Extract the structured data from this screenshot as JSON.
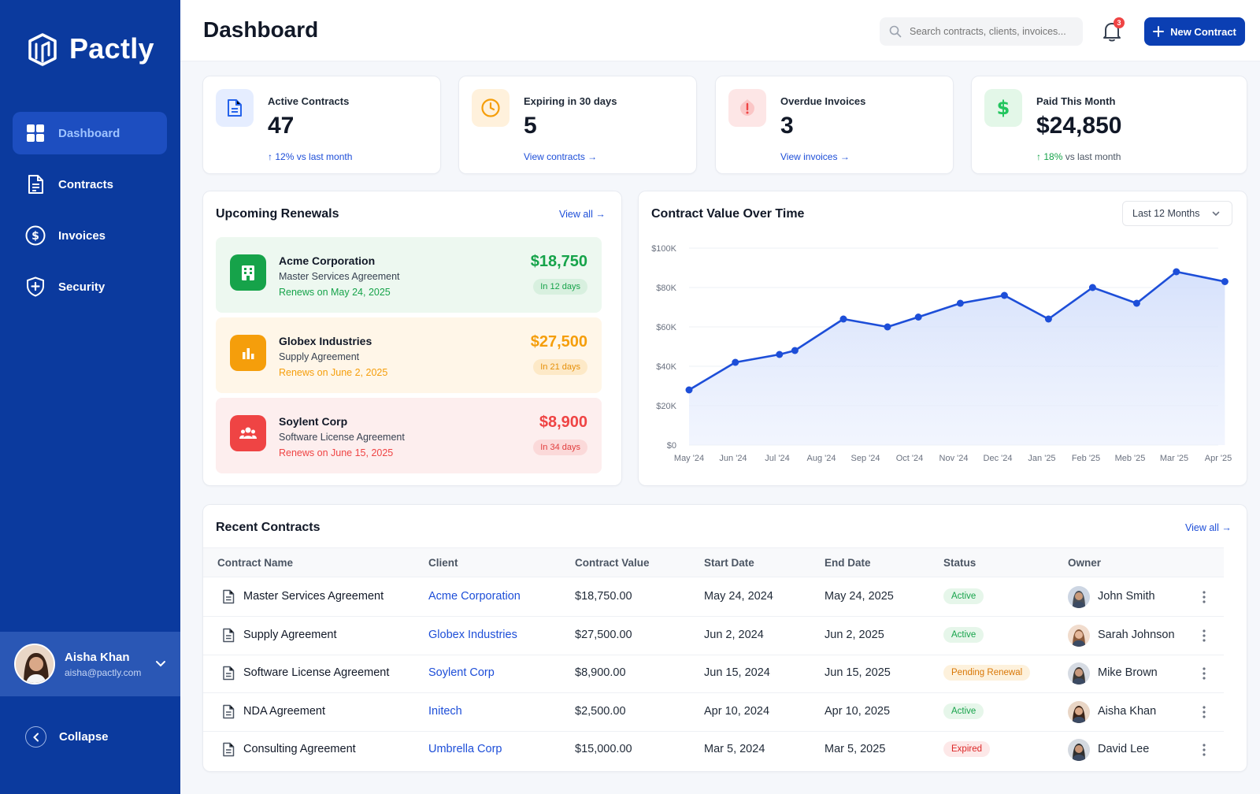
{
  "app": {
    "name": "Pactly"
  },
  "sidebar": {
    "items": [
      {
        "label": "Dashboard",
        "icon": "grid-icon",
        "active": true
      },
      {
        "label": "Contracts",
        "icon": "document-icon",
        "active": false
      },
      {
        "label": "Invoices",
        "icon": "dollar-circle-icon",
        "active": false
      },
      {
        "label": "Security",
        "icon": "shield-plus-icon",
        "active": false
      }
    ],
    "user": {
      "name": "Aisha Khan",
      "email": "aisha@pactly.com"
    },
    "collapse_label": "Collapse"
  },
  "header": {
    "title": "Dashboard",
    "search_placeholder": "Search contracts, clients, invoices...",
    "notification_count": "3",
    "new_button_label": "New Contract"
  },
  "stats": [
    {
      "label": "Active Contracts",
      "value": "47",
      "foot_arrow": "↑",
      "foot": "12% vs last month",
      "icon": "document-icon",
      "color": "#2563eb"
    },
    {
      "label": "Expiring in 30 days",
      "value": "5",
      "foot": "View contracts →",
      "icon": "clock-icon",
      "color": "#f59e0b"
    },
    {
      "label": "Overdue Invoices",
      "value": "3",
      "foot": "View invoices →",
      "icon": "alert-icon",
      "color": "#ef4444"
    },
    {
      "label": "Paid This Month",
      "value": "$24,850",
      "foot_arrow": "↑",
      "foot_pct": "18%",
      "foot": "vs last month",
      "icon": "dollar-icon",
      "color": "#22c55e"
    }
  ],
  "renewals": {
    "title": "Upcoming Renewals",
    "view_all": "View all →",
    "items": [
      {
        "name": "Acme Corporation",
        "type": "Master Services Agreement",
        "date": "Renews on May 24, 2025",
        "amount": "$18,750",
        "badge": "In 12 days",
        "icon": "building-icon",
        "color": "#16a34a"
      },
      {
        "name": "Globex Industries",
        "type": "Supply Agreement",
        "date": "Renews on June 2, 2025",
        "amount": "$27,500",
        "badge": "In 21 days",
        "icon": "bar-chart-icon",
        "color": "#f59e0b"
      },
      {
        "name": "Soylent Corp",
        "type": "Software License Agreement",
        "date": "Renews on June 15, 2025",
        "amount": "$8,900",
        "badge": "In 34 days",
        "icon": "users-icon",
        "color": "#ef4444"
      }
    ]
  },
  "chart_section": {
    "title": "Contract Value Over Time",
    "range_label": "Last 12 Months"
  },
  "chart_data": {
    "type": "area",
    "title": "Contract Value Over Time",
    "x": [
      "May '24",
      "Jun '24",
      "Jul '24",
      "Aug '24",
      "Sep '24",
      "Oct '24",
      "Nov '24",
      "Dec '24",
      "Jan '25",
      "Feb '25",
      "Meb '25",
      "Mar '25",
      "Apr '25"
    ],
    "y_ticks": [
      "$0",
      "$20K",
      "$40K",
      "$60K",
      "$80K",
      "$100K"
    ],
    "ylim": [
      0,
      100000
    ],
    "series": [
      {
        "points": [
          [
            0,
            28000
          ],
          [
            1.05,
            42000
          ],
          [
            2.05,
            46000
          ],
          [
            2.4,
            48000
          ],
          [
            3.5,
            64000
          ],
          [
            4.5,
            60000
          ],
          [
            5.2,
            65000
          ],
          [
            6.15,
            72000
          ],
          [
            7.15,
            76000
          ],
          [
            8.15,
            64000
          ],
          [
            9.15,
            80000
          ],
          [
            10.15,
            72000
          ],
          [
            11.05,
            88000
          ],
          [
            12.15,
            83000
          ]
        ],
        "color": "#1d4ed8"
      }
    ],
    "grid": true
  },
  "recent": {
    "title": "Recent Contracts",
    "view_all": "View all →",
    "columns": [
      "Contract Name",
      "Client",
      "Contract Value",
      "Start Date",
      "End Date",
      "Status",
      "Owner"
    ],
    "rows": [
      {
        "name": "Master Services Agreement",
        "client": "Acme Corporation",
        "value": "$18,750.00",
        "start": "May 24, 2024",
        "end": "May 24, 2025",
        "status": "Active",
        "status_kind": "active",
        "owner": "John Smith"
      },
      {
        "name": "Supply Agreement",
        "client": "Globex Industries",
        "value": "$27,500.00",
        "start": "Jun 2, 2024",
        "end": "Jun 2, 2025",
        "status": "Active",
        "status_kind": "active",
        "owner": "Sarah Johnson"
      },
      {
        "name": "Software License Agreement",
        "client": "Soylent Corp",
        "value": "$8,900.00",
        "start": "Jun 15, 2024",
        "end": "Jun 15, 2025",
        "status": "Pending Renewal",
        "status_kind": "pending",
        "owner": "Mike Brown"
      },
      {
        "name": "NDA Agreement",
        "client": "Initech",
        "value": "$2,500.00",
        "start": "Apr 10, 2024",
        "end": "Apr 10, 2025",
        "status": "Active",
        "status_kind": "active",
        "owner": "Aisha Khan"
      },
      {
        "name": "Consulting Agreement",
        "client": "Umbrella Corp",
        "value": "$15,000.00",
        "start": "Mar 5, 2024",
        "end": "Mar 5, 2025",
        "status": "Expired",
        "status_kind": "expired",
        "owner": "David Lee"
      }
    ]
  }
}
